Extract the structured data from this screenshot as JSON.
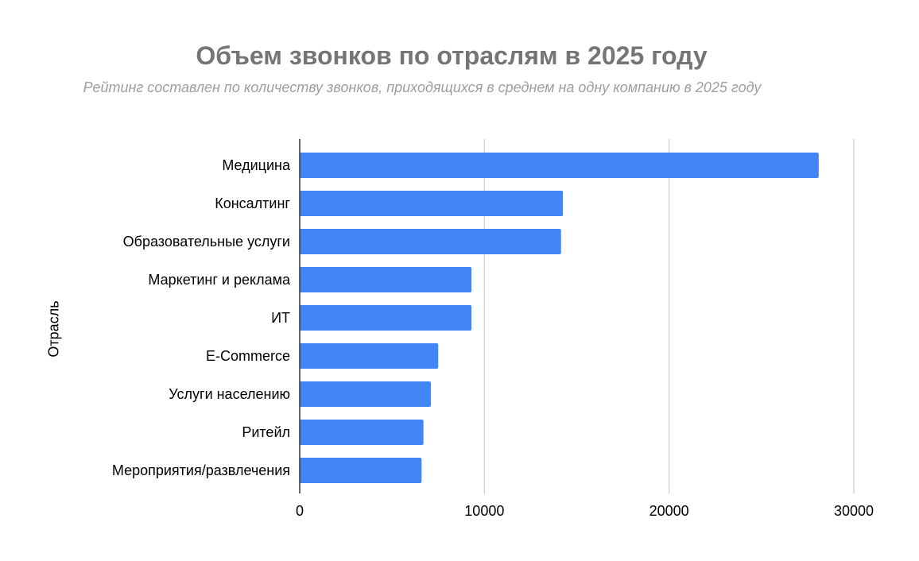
{
  "chart_data": {
    "type": "bar",
    "orientation": "horizontal",
    "title": "Объем звонков по отраслям в 2025 году",
    "subtitle": "Рейтинг составлен по количеству звонков, приходящихся в среднем на одну компанию в 2025 году",
    "ylabel": "Отрасль",
    "xlabel": "",
    "categories": [
      "Медицина",
      "Консалтинг",
      "Образовательные услуги",
      "Маркетинг и реклама",
      "ИТ",
      "E-Commerce",
      "Услуги населению",
      "Ритейл",
      "Мероприятия/развлечения"
    ],
    "values": [
      28100,
      14250,
      14150,
      9300,
      9300,
      7500,
      7100,
      6700,
      6600
    ],
    "xlim": [
      0,
      30000
    ],
    "xticks": [
      "0",
      "10000",
      "20000",
      "30000"
    ],
    "grid": true,
    "legend": "none",
    "bar_color": "#4285f4"
  }
}
